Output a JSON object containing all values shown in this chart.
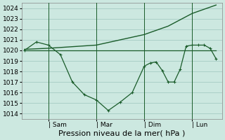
{
  "background_color": "#cce8e0",
  "grid_color": "#aacfc8",
  "line_color": "#1a5c2a",
  "ylim": [
    1013.5,
    1024.5
  ],
  "yticks": [
    1014,
    1015,
    1016,
    1017,
    1018,
    1019,
    1020,
    1021,
    1022,
    1023,
    1024
  ],
  "xlabel": "Pression niveau de la mer( hPa )",
  "xlabel_fontsize": 8,
  "tick_fontsize": 6.5,
  "day_labels": [
    "| Sam",
    "| Mar",
    "| Dim",
    "| Lun"
  ],
  "day_positions": [
    2,
    6,
    10,
    14
  ],
  "smooth_line_x": [
    0,
    2,
    6,
    10,
    12,
    14,
    16
  ],
  "smooth_line_y": [
    1020.1,
    1020.2,
    1020.5,
    1021.5,
    1022.3,
    1023.5,
    1024.3
  ],
  "flat_line_x": [
    0,
    16
  ],
  "flat_line_y": [
    1020.0,
    1020.0
  ],
  "detail_line_x": [
    0,
    1,
    2,
    3,
    4,
    5,
    6,
    7,
    8,
    9,
    10,
    10.5,
    11,
    11.5,
    12,
    12.5,
    13,
    13.5,
    14,
    14.5,
    15,
    15.5,
    16
  ],
  "detail_line_y": [
    1020.0,
    1020.8,
    1020.5,
    1019.6,
    1017.0,
    1015.8,
    1015.3,
    1014.3,
    1015.1,
    1016.0,
    1018.5,
    1018.8,
    1018.9,
    1018.1,
    1017.0,
    1017.0,
    1018.2,
    1020.4,
    1020.5,
    1020.5,
    1020.5,
    1020.2,
    1019.2
  ],
  "detail_markers_x": [
    0,
    1,
    2,
    3,
    4,
    5,
    6,
    7,
    8,
    9,
    10,
    10.5,
    11,
    11.5,
    12,
    12.5,
    13,
    13.5,
    14,
    14.5,
    15,
    15.5,
    16
  ],
  "vline_positions": [
    2,
    6,
    10,
    14
  ],
  "xlim": [
    -0.2,
    16.5
  ]
}
